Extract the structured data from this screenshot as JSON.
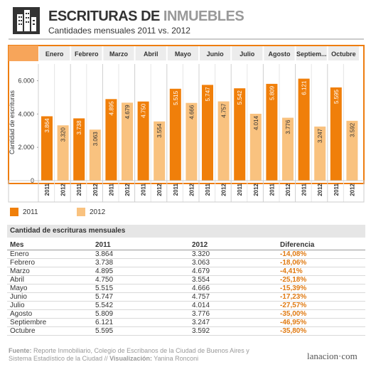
{
  "header": {
    "title_part1": "ESCRITURAS DE",
    "title_part2": "INMUEBLES",
    "subtitle": "Cantidades mensuales 2011 vs. 2012",
    "logo_icon": "buildings-icon"
  },
  "colors": {
    "s2011": "#f07f0a",
    "s2012": "#f9c27f",
    "diff": "#e07a12",
    "months": "#666666"
  },
  "chart_data": {
    "type": "bar",
    "categories": [
      "Enero",
      "Febrero",
      "Marzo",
      "Abril",
      "Mayo",
      "Junio",
      "Julio",
      "Agosto",
      "Septiem...",
      "Octubre"
    ],
    "series": [
      {
        "name": "2011",
        "values": [
          3864,
          3738,
          4895,
          4750,
          5515,
          5747,
          5542,
          5809,
          6121,
          5595
        ],
        "labels": [
          "3.864",
          "3.738",
          "4.895",
          "4.750",
          "5.515",
          "5.747",
          "5.542",
          "5.809",
          "6.121",
          "5.595"
        ]
      },
      {
        "name": "2012",
        "values": [
          3320,
          3063,
          4679,
          3554,
          4666,
          4757,
          4014,
          3776,
          3247,
          3592
        ],
        "labels": [
          "3.320",
          "3.063",
          "4.679",
          "3.554",
          "4.666",
          "4.757",
          "4.014",
          "3.776",
          "3.247",
          "3.592"
        ]
      }
    ],
    "ylabel": "Cantidad de escrituras",
    "yticks": [
      "0",
      "2.000",
      "4.000",
      "6.000"
    ],
    "ytick_values": [
      0,
      2000,
      4000,
      6000
    ],
    "ylim": [
      0,
      7000
    ],
    "year_labels": [
      "2011",
      "2012"
    ]
  },
  "legend": [
    {
      "label": "2011"
    },
    {
      "label": "2012"
    }
  ],
  "table": {
    "title": "Cantidad de escrituras mensuales",
    "headers": [
      "Mes",
      "2011",
      "2012",
      "Diferencia"
    ],
    "rows": [
      [
        "Enero",
        "3.864",
        "3.320",
        "-14,08%"
      ],
      [
        "Febrero",
        "3.738",
        "3.063",
        "-18,06%"
      ],
      [
        "Marzo",
        "4.895",
        "4.679",
        "-4,41%"
      ],
      [
        "Abril",
        "4.750",
        "3.554",
        "-25,18%"
      ],
      [
        "Mayo",
        "5.515",
        "4.666",
        "-15,39%"
      ],
      [
        "Junio",
        "5.747",
        "4.757",
        "-17,23%"
      ],
      [
        "Julio",
        "5.542",
        "4.014",
        "-27,57%"
      ],
      [
        "Agosto",
        "5.809",
        "3.776",
        "-35,00%"
      ],
      [
        "Septiembre",
        "6.121",
        "3.247",
        "-46,95%"
      ],
      [
        "Octubre",
        "5.595",
        "3.592",
        "-35,80%"
      ]
    ]
  },
  "footer": {
    "fuente_label": "Fuente:",
    "fuente_text": "Reporte Inmobiliario, Colegio de Escribanos de la Ciudad de Buenos Aires y Sistema Estadístico de la Ciudad //",
    "viz_label": "Visualización:",
    "viz_text": "Yanina Ronconi"
  },
  "brand": "lanacion·com"
}
